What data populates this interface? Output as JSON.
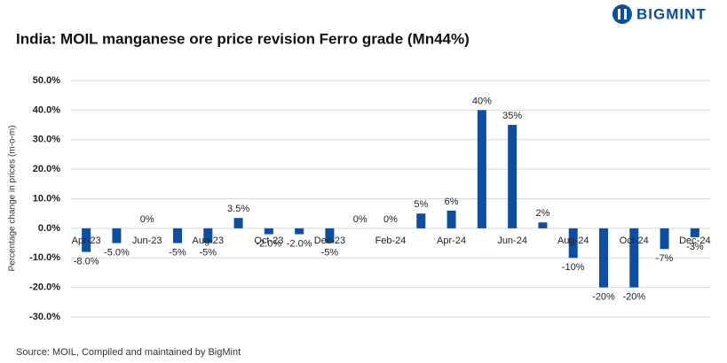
{
  "chart_data": {
    "type": "bar",
    "brand": "BIGMINT",
    "title": "India: MOIL manganese ore price revision Ferro grade (Mn44%)",
    "y_label": "Percentage change in prices (m-o-m)",
    "source": "Source: MOIL, Compiled and maintained by BigMint",
    "categories": [
      "Apr-23",
      null,
      "Jun-23",
      null,
      "Aug-23",
      null,
      "Oct-23",
      null,
      "Dec-23",
      null,
      "Feb-24",
      null,
      "Apr-24",
      null,
      "Jun-24",
      null,
      "Aug-24",
      null,
      "Oct-24",
      null,
      "Dec-24"
    ],
    "values": [
      -8.0,
      -5.0,
      0,
      -5,
      -5,
      3.5,
      -2.0,
      -2.0,
      -5,
      0,
      0,
      5,
      6,
      40,
      35,
      2,
      -10,
      -20,
      -20,
      -7,
      -3
    ],
    "value_labels": [
      "-8.0%",
      "-5.0%",
      "0%",
      "-5%",
      "-5%",
      "3.5%",
      "-2.0%",
      "-2.0%",
      "-5%",
      "0%",
      "0%",
      "5%",
      "6%",
      "40%",
      "35%",
      "2%",
      "-10%",
      "-20%",
      "-20%",
      "-7%",
      "-3%"
    ],
    "color": "#0b4ea2",
    "ylim": [
      -30,
      50
    ],
    "yticks": [
      {
        "value": -30,
        "label": "-30.0%"
      },
      {
        "value": -20,
        "label": "-20.0%"
      },
      {
        "value": -10,
        "label": "-10.0%"
      },
      {
        "value": 0,
        "label": "0.0%"
      },
      {
        "value": 10,
        "label": "10.0%"
      },
      {
        "value": 20,
        "label": "20.0%"
      },
      {
        "value": 30,
        "label": "30.0%"
      },
      {
        "value": 40,
        "label": "40.0%"
      },
      {
        "value": 50,
        "label": "50.0%"
      }
    ],
    "grid": true
  }
}
